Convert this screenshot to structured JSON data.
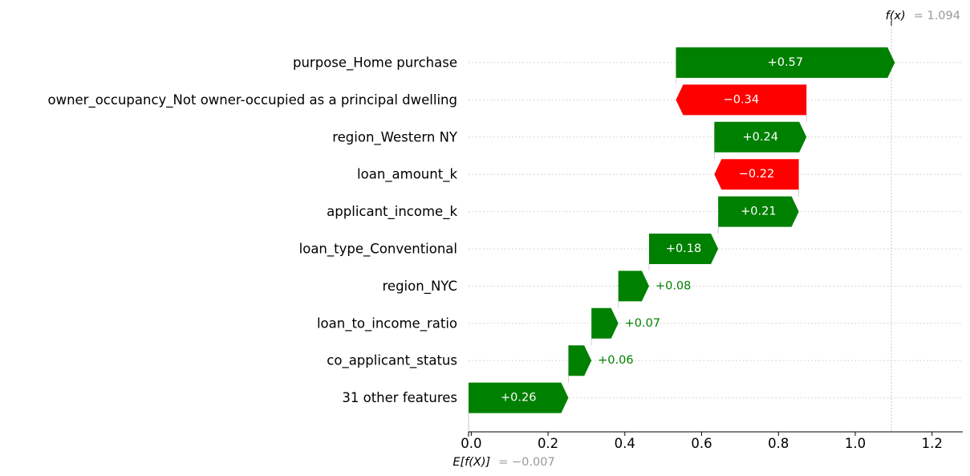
{
  "chart_data": {
    "type": "bar",
    "features": [
      "purpose_Home purchase",
      "owner_occupancy_Not owner-occupied as a principal dwelling",
      "region_Western NY",
      "loan_amount_k",
      "applicant_income_k",
      "loan_type_Conventional",
      "region_NYC",
      "loan_to_income_ratio",
      "co_applicant_status",
      "31 other features"
    ],
    "values": [
      0.57,
      -0.34,
      0.24,
      -0.22,
      0.21,
      0.18,
      0.08,
      0.07,
      0.06,
      0.26
    ],
    "value_labels": [
      "+0.57",
      "−0.34",
      "+0.24",
      "−0.22",
      "+0.21",
      "+0.18",
      "+0.08",
      "+0.07",
      "+0.06",
      "+0.26"
    ],
    "base_value": -0.007,
    "output_value": 1.094,
    "xlim": [
      -0.007,
      1.28
    ],
    "xticks": [
      0.0,
      0.2,
      0.4,
      0.6,
      0.8,
      1.0,
      1.2
    ],
    "xtick_labels": [
      "0.0",
      "0.2",
      "0.4",
      "0.6",
      "0.8",
      "1.0",
      "1.2"
    ],
    "fx_label": "f(x)",
    "fx_value_text": "= 1.094",
    "efx_label": "E[f(X)]",
    "efx_value_text": "= −0.007",
    "colors": {
      "positive": "#008000",
      "negative": "#ff0000",
      "grid": "#cccccc",
      "annotation_value": "#999999"
    }
  }
}
